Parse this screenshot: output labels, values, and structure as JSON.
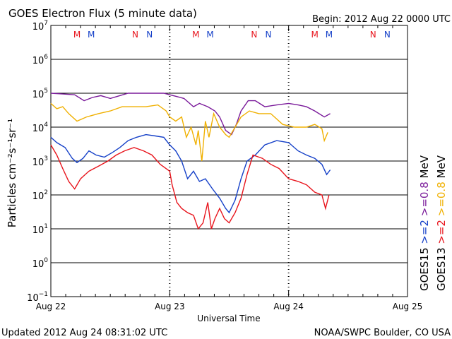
{
  "header": {
    "title": "GOES Electron Flux (5 minute data)",
    "begin": "Begin: 2012 Aug 22 0000 UTC"
  },
  "footer": {
    "updated": "Updated 2012 Aug 24 08:31:02 UTC",
    "source": "NOAA/SWPC Boulder, CO USA"
  },
  "colors": {
    "red": "#e8141c",
    "blue": "#1540c8",
    "purple": "#7a1a9a",
    "orange": "#f0b000"
  },
  "chart_data": {
    "type": "line",
    "xlabel": "Universal Time",
    "ylabel": "Particles cm⁻²s⁻¹sr⁻¹",
    "y_scale": "log",
    "ylim": [
      0.1,
      10000000
    ],
    "xlim": [
      "2012-08-22T00:00",
      "2012-08-25T00:00"
    ],
    "x_tick_labels": [
      "Aug 22",
      "Aug 23",
      "Aug 24",
      "Aug 25"
    ],
    "y_tick_labels": [
      {
        "base": "10",
        "exp": "−1"
      },
      {
        "base": "10",
        "exp": "0"
      },
      {
        "base": "10",
        "exp": "1"
      },
      {
        "base": "10",
        "exp": "2"
      },
      {
        "base": "10",
        "exp": "3"
      },
      {
        "base": "10",
        "exp": "4"
      },
      {
        "base": "10",
        "exp": "5"
      },
      {
        "base": "10",
        "exp": "6"
      },
      {
        "base": "10",
        "exp": "7"
      }
    ],
    "threshold": 1000,
    "grid": true,
    "markers": [
      {
        "label": "M",
        "day": 0.22,
        "color": "red"
      },
      {
        "label": "M",
        "day": 0.34,
        "color": "blue"
      },
      {
        "label": "N",
        "day": 0.71,
        "color": "red"
      },
      {
        "label": "N",
        "day": 0.83,
        "color": "blue"
      },
      {
        "label": "M",
        "day": 1.22,
        "color": "red"
      },
      {
        "label": "M",
        "day": 1.34,
        "color": "blue"
      },
      {
        "label": "N",
        "day": 1.71,
        "color": "red"
      },
      {
        "label": "N",
        "day": 1.83,
        "color": "blue"
      },
      {
        "label": "M",
        "day": 2.22,
        "color": "red"
      },
      {
        "label": "M",
        "day": 2.34,
        "color": "blue"
      },
      {
        "label": "N",
        "day": 2.71,
        "color": "red"
      },
      {
        "label": "N",
        "day": 2.83,
        "color": "blue"
      }
    ],
    "legend": [
      {
        "text": ">=2",
        "color": "red"
      },
      {
        "text": ">=0.8",
        "color": "orange"
      },
      {
        "text": "MeV",
        "color": "black"
      },
      {
        "text": ">=2",
        "color": "blue"
      },
      {
        "text": ">=0.8",
        "color": "purple"
      },
      {
        "text": "MeV",
        "color": "black"
      },
      {
        "text": "GOES13",
        "color": "black"
      },
      {
        "text": "GOES15",
        "color": "black"
      }
    ],
    "series": [
      {
        "name": "GOES15 >=0.8 MeV",
        "color": "purple",
        "points": [
          [
            0.0,
            100000
          ],
          [
            0.1,
            95000
          ],
          [
            0.2,
            90000
          ],
          [
            0.28,
            60000
          ],
          [
            0.35,
            75000
          ],
          [
            0.42,
            85000
          ],
          [
            0.5,
            70000
          ],
          [
            0.58,
            85000
          ],
          [
            0.65,
            100000
          ],
          [
            0.75,
            100000
          ],
          [
            0.85,
            100000
          ],
          [
            0.95,
            100000
          ],
          [
            1.0,
            90000
          ],
          [
            1.06,
            80000
          ],
          [
            1.12,
            70000
          ],
          [
            1.2,
            40000
          ],
          [
            1.25,
            50000
          ],
          [
            1.32,
            40000
          ],
          [
            1.38,
            30000
          ],
          [
            1.42,
            20000
          ],
          [
            1.47,
            8000
          ],
          [
            1.52,
            6000
          ],
          [
            1.56,
            12000
          ],
          [
            1.6,
            30000
          ],
          [
            1.66,
            60000
          ],
          [
            1.72,
            60000
          ],
          [
            1.8,
            40000
          ],
          [
            1.9,
            45000
          ],
          [
            2.0,
            50000
          ],
          [
            2.08,
            45000
          ],
          [
            2.15,
            40000
          ],
          [
            2.22,
            30000
          ],
          [
            2.3,
            20000
          ],
          [
            2.35,
            25000
          ]
        ]
      },
      {
        "name": "GOES13 >=0.8 MeV",
        "color": "orange",
        "points": [
          [
            0.0,
            50000
          ],
          [
            0.05,
            35000
          ],
          [
            0.1,
            40000
          ],
          [
            0.15,
            25000
          ],
          [
            0.22,
            15000
          ],
          [
            0.3,
            20000
          ],
          [
            0.4,
            25000
          ],
          [
            0.5,
            30000
          ],
          [
            0.6,
            40000
          ],
          [
            0.7,
            40000
          ],
          [
            0.8,
            40000
          ],
          [
            0.9,
            45000
          ],
          [
            0.97,
            30000
          ],
          [
            1.0,
            20000
          ],
          [
            1.05,
            15000
          ],
          [
            1.1,
            20000
          ],
          [
            1.14,
            5000
          ],
          [
            1.18,
            10000
          ],
          [
            1.22,
            3000
          ],
          [
            1.24,
            8000
          ],
          [
            1.27,
            1000
          ],
          [
            1.3,
            15000
          ],
          [
            1.33,
            5000
          ],
          [
            1.37,
            25000
          ],
          [
            1.42,
            10000
          ],
          [
            1.47,
            6000
          ],
          [
            1.5,
            5000
          ],
          [
            1.55,
            10000
          ],
          [
            1.6,
            20000
          ],
          [
            1.67,
            30000
          ],
          [
            1.75,
            25000
          ],
          [
            1.85,
            25000
          ],
          [
            1.95,
            12000
          ],
          [
            2.05,
            10000
          ],
          [
            2.15,
            10000
          ],
          [
            2.22,
            12000
          ],
          [
            2.28,
            9000
          ],
          [
            2.3,
            4000
          ],
          [
            2.33,
            7000
          ]
        ]
      },
      {
        "name": "GOES15 >=2 MeV",
        "color": "blue",
        "points": [
          [
            0.0,
            5000
          ],
          [
            0.05,
            3500
          ],
          [
            0.12,
            2500
          ],
          [
            0.18,
            1200
          ],
          [
            0.22,
            900
          ],
          [
            0.27,
            1200
          ],
          [
            0.32,
            2000
          ],
          [
            0.38,
            1500
          ],
          [
            0.45,
            1300
          ],
          [
            0.52,
            1800
          ],
          [
            0.58,
            2500
          ],
          [
            0.65,
            4000
          ],
          [
            0.72,
            5000
          ],
          [
            0.8,
            6000
          ],
          [
            0.88,
            5500
          ],
          [
            0.95,
            5000
          ],
          [
            1.0,
            3000
          ],
          [
            1.05,
            2000
          ],
          [
            1.1,
            1000
          ],
          [
            1.15,
            300
          ],
          [
            1.2,
            500
          ],
          [
            1.25,
            250
          ],
          [
            1.3,
            300
          ],
          [
            1.36,
            150
          ],
          [
            1.42,
            80
          ],
          [
            1.47,
            40
          ],
          [
            1.5,
            30
          ],
          [
            1.55,
            70
          ],
          [
            1.6,
            300
          ],
          [
            1.65,
            1000
          ],
          [
            1.72,
            1500
          ],
          [
            1.8,
            3000
          ],
          [
            1.9,
            4000
          ],
          [
            2.0,
            3500
          ],
          [
            2.08,
            2000
          ],
          [
            2.15,
            1500
          ],
          [
            2.22,
            1200
          ],
          [
            2.28,
            800
          ],
          [
            2.32,
            400
          ],
          [
            2.35,
            550
          ]
        ]
      },
      {
        "name": "GOES13 >=2 MeV",
        "color": "red",
        "points": [
          [
            0.0,
            3000
          ],
          [
            0.05,
            1500
          ],
          [
            0.1,
            600
          ],
          [
            0.15,
            250
          ],
          [
            0.2,
            150
          ],
          [
            0.25,
            300
          ],
          [
            0.32,
            500
          ],
          [
            0.4,
            700
          ],
          [
            0.48,
            1000
          ],
          [
            0.55,
            1500
          ],
          [
            0.62,
            2000
          ],
          [
            0.7,
            2500
          ],
          [
            0.78,
            2000
          ],
          [
            0.85,
            1500
          ],
          [
            0.92,
            800
          ],
          [
            1.0,
            500
          ],
          [
            1.02,
            200
          ],
          [
            1.06,
            60
          ],
          [
            1.1,
            40
          ],
          [
            1.15,
            30
          ],
          [
            1.2,
            25
          ],
          [
            1.24,
            10
          ],
          [
            1.28,
            15
          ],
          [
            1.32,
            60
          ],
          [
            1.35,
            10
          ],
          [
            1.38,
            20
          ],
          [
            1.42,
            40
          ],
          [
            1.46,
            20
          ],
          [
            1.5,
            15
          ],
          [
            1.55,
            30
          ],
          [
            1.6,
            80
          ],
          [
            1.65,
            400
          ],
          [
            1.7,
            1500
          ],
          [
            1.78,
            1200
          ],
          [
            1.85,
            800
          ],
          [
            1.92,
            600
          ],
          [
            2.0,
            300
          ],
          [
            2.08,
            250
          ],
          [
            2.15,
            200
          ],
          [
            2.22,
            120
          ],
          [
            2.28,
            100
          ],
          [
            2.31,
            40
          ],
          [
            2.34,
            100
          ]
        ]
      }
    ]
  }
}
